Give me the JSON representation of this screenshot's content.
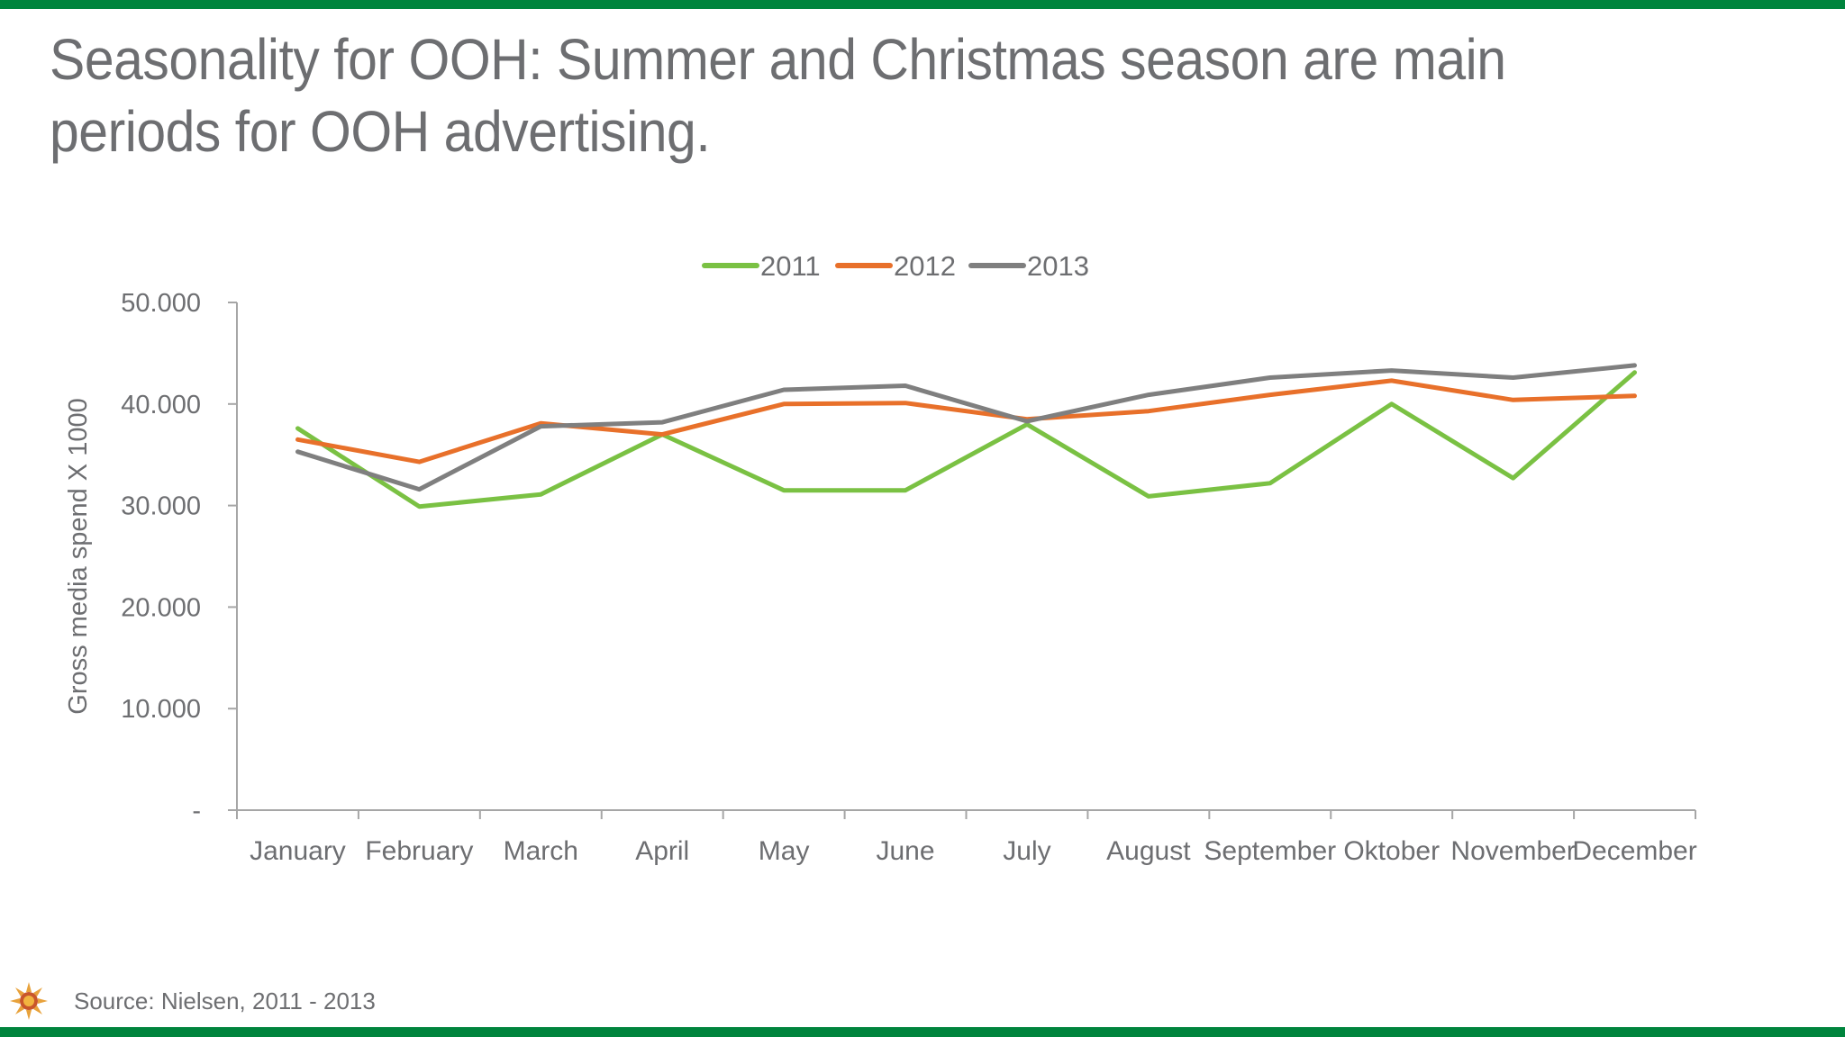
{
  "slide": {
    "title": "Seasonality for OOH: Summer and Christmas season are main periods for OOH advertising.",
    "source": "Source: Nielsen, 2011 - 2013"
  },
  "colors": {
    "brand_bar": "#00843d",
    "text": "#6d6e71",
    "axis": "#a6a6a6"
  },
  "chart_data": {
    "type": "line",
    "title": "",
    "xlabel": "",
    "ylabel": "Gross media spend X 1000",
    "ylim": [
      0,
      50000
    ],
    "y_ticks": [
      {
        "value": 0,
        "label": "-"
      },
      {
        "value": 10000,
        "label": "10.000"
      },
      {
        "value": 20000,
        "label": "20.000"
      },
      {
        "value": 30000,
        "label": "30.000"
      },
      {
        "value": 40000,
        "label": "40.000"
      },
      {
        "value": 50000,
        "label": "50.000"
      }
    ],
    "categories": [
      "January",
      "February",
      "March",
      "April",
      "May",
      "June",
      "July",
      "August",
      "September",
      "Oktober",
      "November",
      "December"
    ],
    "grid": false,
    "legend_position": "top-center",
    "series": [
      {
        "name": "2011",
        "color": "#7ac143",
        "values": [
          37600,
          29900,
          31100,
          37000,
          31500,
          31500,
          38000,
          30900,
          32200,
          40000,
          32700,
          43100
        ]
      },
      {
        "name": "2012",
        "color": "#e8702a",
        "values": [
          36500,
          34300,
          38100,
          37000,
          40000,
          40100,
          38500,
          39300,
          40900,
          42300,
          40400,
          40800
        ]
      },
      {
        "name": "2013",
        "color": "#7f7f7f",
        "values": [
          35300,
          31600,
          37800,
          38200,
          41400,
          41800,
          38300,
          40900,
          42600,
          43300,
          42600,
          43800
        ]
      }
    ]
  }
}
